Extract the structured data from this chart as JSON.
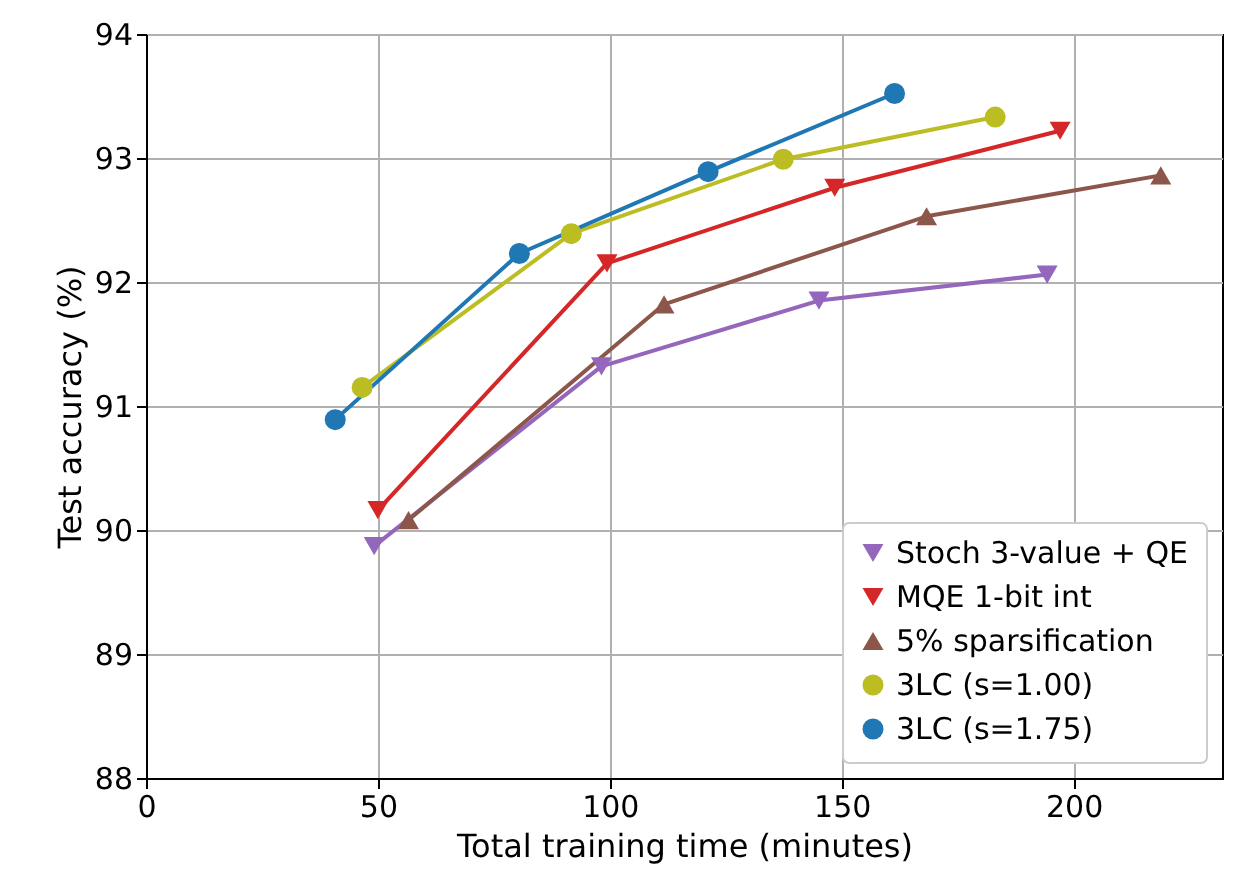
{
  "chart_data": {
    "type": "line",
    "xlabel": "Total training time (minutes)",
    "ylabel": "Test accuracy (%)",
    "xlim": [
      0,
      232
    ],
    "xticks": [
      0,
      50,
      100,
      150,
      200
    ],
    "ylim": [
      88,
      94
    ],
    "yticks": [
      88,
      89,
      90,
      91,
      92,
      93,
      94
    ],
    "grid": true,
    "legend": "bottom right",
    "series": [
      {
        "name": "Stoch 3-value + QE",
        "color": "#9467bd",
        "marker": "triangle-down",
        "x": [
          49.2,
          98.2,
          145.1,
          194.3
        ],
        "values": [
          89.87,
          91.32,
          91.85,
          92.06
        ]
      },
      {
        "name": "MQE 1-bit int",
        "color": "#d62728",
        "marker": "triangle-down",
        "x": [
          50,
          99.4,
          148.5,
          197.1
        ],
        "values": [
          90.16,
          92.15,
          92.76,
          93.22
        ]
      },
      {
        "name": "5% sparsification",
        "color": "#8c564b",
        "marker": "triangle",
        "x": [
          56.6,
          111.7,
          168.3,
          218.8
        ],
        "values": [
          90.08,
          91.82,
          92.53,
          92.86
        ]
      },
      {
        "name": "3LC (s=1.00)",
        "color": "#bcbd22",
        "marker": "circle",
        "x": [
          46.6,
          91.7,
          137.4,
          183.1
        ],
        "values": [
          91.15,
          92.39,
          92.99,
          93.33
        ]
      },
      {
        "name": "3LC (s=1.75)",
        "color": "#1f77b4",
        "marker": "circle",
        "x": [
          40.8,
          80.5,
          121.2,
          161.4
        ],
        "values": [
          90.89,
          92.23,
          92.89,
          93.52
        ]
      }
    ]
  }
}
